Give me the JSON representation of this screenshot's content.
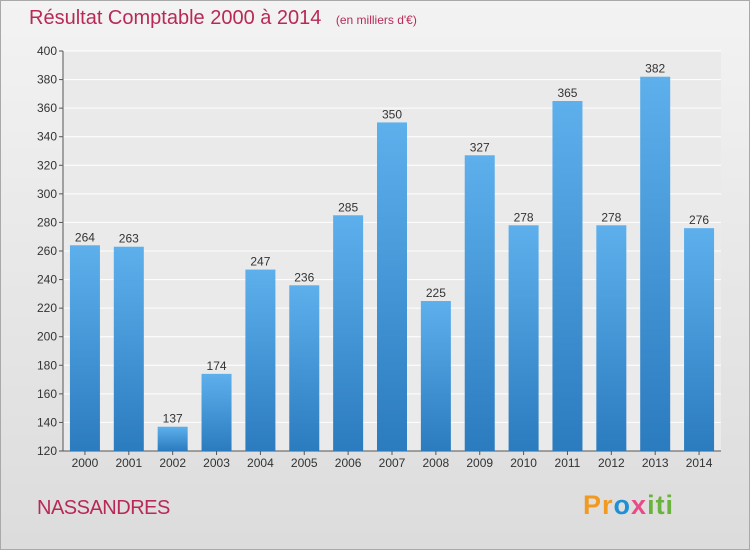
{
  "title": {
    "main": "Résultat Comptable 2000 à 2014",
    "sub": "(en milliers d'€)"
  },
  "commune": "NASSANDRES",
  "logo": {
    "text": "Proxiti",
    "parts": [
      "Pr",
      "o",
      "x",
      "iti"
    ]
  },
  "colors": {
    "bar": "#3a93d8",
    "bar_light": "#5db0ec",
    "bar_dark": "#2b7bbf",
    "title": "#b82a55"
  },
  "chart_data": {
    "type": "bar",
    "categories": [
      "2000",
      "2001",
      "2002",
      "2003",
      "2004",
      "2005",
      "2006",
      "2007",
      "2008",
      "2009",
      "2010",
      "2011",
      "2012",
      "2013",
      "2014"
    ],
    "values": [
      264,
      263,
      137,
      174,
      247,
      236,
      285,
      350,
      225,
      327,
      278,
      365,
      278,
      382,
      276
    ],
    "ylim": [
      120,
      400
    ],
    "yticks": [
      120,
      140,
      160,
      180,
      200,
      220,
      240,
      260,
      280,
      300,
      320,
      340,
      360,
      380,
      400
    ],
    "grid": true,
    "data_labels": true,
    "xlabel": "",
    "ylabel": ""
  }
}
